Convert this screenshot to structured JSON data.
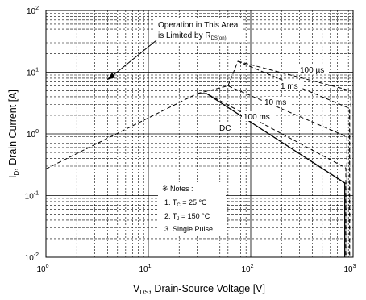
{
  "chart_data": {
    "type": "line",
    "title": "",
    "xlabel": {
      "main": "V",
      "sub": "DS",
      "rest": ", Drain-Source Voltage [V]"
    },
    "ylabel": {
      "main": "I",
      "sub": "D",
      "rest": ", Drain Current [A]"
    },
    "x_scale": "log",
    "y_scale": "log",
    "xlim": [
      1,
      1000
    ],
    "ylim": [
      0.01,
      100
    ],
    "x_ticks": [
      {
        "value": 1,
        "base": "10",
        "exp": "0"
      },
      {
        "value": 10,
        "base": "10",
        "exp": "1"
      },
      {
        "value": 100,
        "base": "10",
        "exp": "2"
      },
      {
        "value": 1000,
        "base": "10",
        "exp": "3"
      }
    ],
    "y_ticks": [
      {
        "value": 0.01,
        "base": "10",
        "exp": "-2"
      },
      {
        "value": 0.1,
        "base": "10",
        "exp": "-1"
      },
      {
        "value": 1,
        "base": "10",
        "exp": "0"
      },
      {
        "value": 10,
        "base": "10",
        "exp": "1"
      },
      {
        "value": 100,
        "base": "10",
        "exp": "2"
      }
    ],
    "grid": true,
    "series": [
      {
        "name": "DC",
        "style": "solid",
        "points": [
          [
            32,
            4.5
          ],
          [
            37,
            4.5
          ],
          [
            830,
            0.16
          ],
          [
            830,
            0.01
          ]
        ]
      },
      {
        "name": "100 ms",
        "style": "dashed",
        "points": [
          [
            1,
            0.27
          ],
          [
            30,
            4.5
          ],
          [
            37,
            4.5
          ],
          [
            850,
            0.28
          ],
          [
            850,
            0.01
          ]
        ]
      },
      {
        "name": "10 ms",
        "style": "dashed",
        "points": [
          [
            30,
            4.5
          ],
          [
            60,
            6.0
          ],
          [
            870,
            0.9
          ],
          [
            870,
            0.01
          ]
        ]
      },
      {
        "name": "1 ms",
        "style": "dashed",
        "points": [
          [
            60,
            6.0
          ],
          [
            75,
            15.0
          ],
          [
            920,
            2.6
          ],
          [
            920,
            0.01
          ]
        ]
      },
      {
        "name": "100 µs",
        "style": "dashed",
        "points": [
          [
            75,
            15.0
          ],
          [
            950,
            5.0
          ],
          [
            950,
            0.01
          ]
        ]
      }
    ],
    "annotations": {
      "rds_line1": "Operation in This Area",
      "rds_line2": "is Limited by R",
      "rds_sub": "DS(on)",
      "label_100us": "100 µs",
      "label_1ms": "1 ms",
      "label_10ms": "10 ms",
      "label_100ms": "100 ms",
      "label_dc": "DC",
      "notes_title": "※ Notes :",
      "note1_pre": "1. T",
      "note1_sub": "C",
      "note1_post": " = 25 °C",
      "note2_pre": "2. T",
      "note2_sub": "J",
      "note2_post": " = 150 °C",
      "note3": "3. Single Pulse"
    }
  }
}
